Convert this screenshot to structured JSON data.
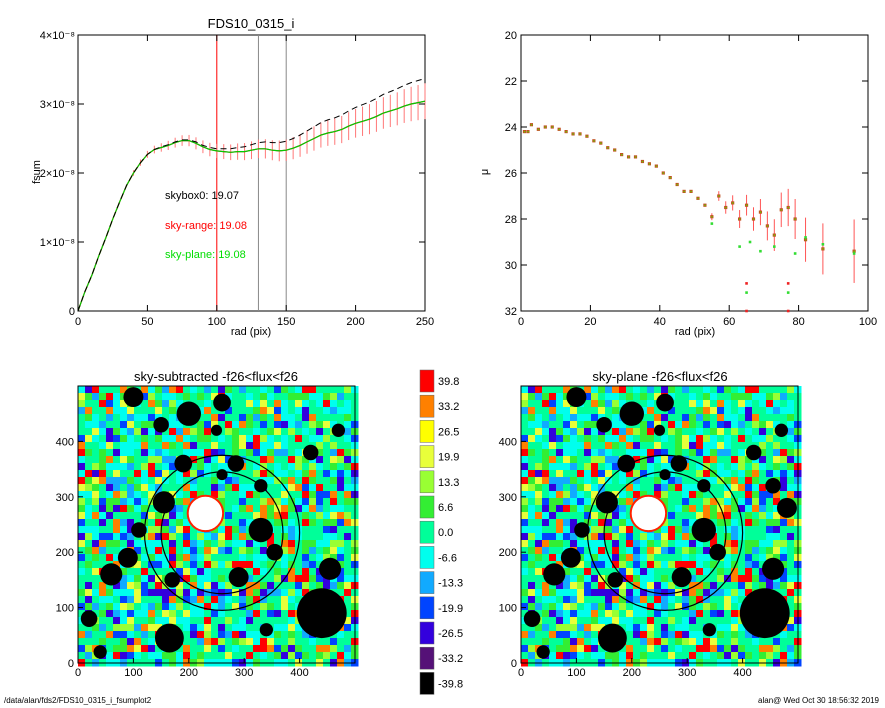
{
  "footer": {
    "path": "/data/alan/fds2/FDS10_0315_i_fsumplot2",
    "stamp": "alan@  Wed Oct 30 18:56:32 2019"
  },
  "chart_data": [
    {
      "type": "line",
      "title": "FDS10_0315_i",
      "xlabel": "rad (pix)",
      "ylabel": "fsum",
      "xlim": [
        0,
        250
      ],
      "ylim": [
        0,
        4e-08
      ],
      "xticks": [
        "0",
        "50",
        "100",
        "150",
        "200",
        "250"
      ],
      "yticks": [
        "0",
        "1×10⁻⁸",
        "2×10⁻⁸",
        "3×10⁻⁸",
        "4×10⁻⁸"
      ],
      "vlines": [
        {
          "x": 100,
          "color": "#ff0000"
        },
        {
          "x": 130,
          "color": "#888888"
        },
        {
          "x": 150,
          "color": "#888888"
        }
      ],
      "annotations": [
        {
          "text": "skybox0: 19.07",
          "color": "#000000"
        },
        {
          "text": "sky-range: 19.08",
          "color": "#ff0000"
        },
        {
          "text": "sky-plane: 19.08",
          "color": "#00dd00"
        }
      ],
      "x": [
        0,
        5,
        10,
        15,
        20,
        25,
        30,
        35,
        40,
        45,
        50,
        55,
        60,
        65,
        70,
        75,
        80,
        85,
        90,
        95,
        100,
        105,
        110,
        115,
        120,
        125,
        130,
        135,
        140,
        145,
        150,
        155,
        160,
        165,
        170,
        175,
        180,
        185,
        190,
        195,
        200,
        205,
        210,
        215,
        220,
        225,
        230,
        235,
        240,
        245,
        250
      ],
      "series": [
        {
          "color": "#ff0000",
          "y": [
            0,
            0.28,
            0.52,
            0.8,
            1.06,
            1.33,
            1.58,
            1.82,
            2.0,
            2.15,
            2.27,
            2.34,
            2.37,
            2.4,
            2.44,
            2.47,
            2.47,
            2.43,
            2.38,
            2.34,
            2.32,
            2.31,
            2.3,
            2.31,
            2.31,
            2.33,
            2.35,
            2.35,
            2.33,
            2.32,
            2.33,
            2.36,
            2.4,
            2.45,
            2.5,
            2.55,
            2.58,
            2.6,
            2.63,
            2.68,
            2.72,
            2.75,
            2.78,
            2.82,
            2.87,
            2.9,
            2.93,
            2.97,
            3.0,
            3.02,
            3.04
          ]
        },
        {
          "color": "#00cc00",
          "y": [
            0,
            0.28,
            0.52,
            0.8,
            1.06,
            1.33,
            1.58,
            1.82,
            2.0,
            2.15,
            2.27,
            2.34,
            2.37,
            2.4,
            2.44,
            2.47,
            2.47,
            2.43,
            2.38,
            2.34,
            2.32,
            2.31,
            2.3,
            2.31,
            2.31,
            2.33,
            2.35,
            2.35,
            2.33,
            2.32,
            2.33,
            2.36,
            2.4,
            2.45,
            2.5,
            2.55,
            2.58,
            2.6,
            2.63,
            2.68,
            2.72,
            2.75,
            2.78,
            2.82,
            2.87,
            2.9,
            2.93,
            2.97,
            3.0,
            3.02,
            3.04
          ]
        },
        {
          "color": "#000000",
          "dash": true,
          "y": [
            0,
            0.28,
            0.52,
            0.8,
            1.06,
            1.33,
            1.58,
            1.82,
            2.0,
            2.15,
            2.27,
            2.34,
            2.38,
            2.41,
            2.45,
            2.48,
            2.48,
            2.45,
            2.4,
            2.37,
            2.35,
            2.35,
            2.35,
            2.37,
            2.38,
            2.41,
            2.44,
            2.45,
            2.44,
            2.44,
            2.46,
            2.5,
            2.55,
            2.61,
            2.67,
            2.73,
            2.77,
            2.8,
            2.84,
            2.9,
            2.95,
            2.99,
            3.03,
            3.08,
            3.14,
            3.18,
            3.22,
            3.27,
            3.31,
            3.34,
            3.37
          ]
        }
      ]
    },
    {
      "type": "scatter",
      "ylabel": "μ",
      "xlabel": "rad (pix)",
      "xlim": [
        0,
        100
      ],
      "ylim": [
        32,
        20
      ],
      "xticks": [
        "0",
        "20",
        "40",
        "60",
        "80",
        "100"
      ],
      "yticks": [
        "20",
        "22",
        "24",
        "26",
        "28",
        "30",
        "32"
      ],
      "points": [
        [
          1,
          24.2
        ],
        [
          2,
          24.2
        ],
        [
          3,
          23.9
        ],
        [
          5,
          24.1
        ],
        [
          7,
          24.0
        ],
        [
          9,
          24.0
        ],
        [
          11,
          24.1
        ],
        [
          13,
          24.2
        ],
        [
          15,
          24.3
        ],
        [
          17,
          24.3
        ],
        [
          19,
          24.4
        ],
        [
          21,
          24.6
        ],
        [
          23,
          24.7
        ],
        [
          25,
          24.9
        ],
        [
          27,
          25.0
        ],
        [
          29,
          25.2
        ],
        [
          31,
          25.3
        ],
        [
          33,
          25.3
        ],
        [
          35,
          25.5
        ],
        [
          37,
          25.6
        ],
        [
          39,
          25.7
        ],
        [
          41,
          26.0
        ],
        [
          43,
          26.2
        ],
        [
          45,
          26.5
        ],
        [
          47,
          26.8
        ],
        [
          49,
          26.8
        ],
        [
          51,
          27.1
        ],
        [
          53,
          27.4
        ],
        [
          55,
          27.9
        ],
        [
          57,
          27.0
        ],
        [
          59,
          27.5
        ],
        [
          61,
          27.3
        ],
        [
          63,
          28.0
        ],
        [
          65,
          27.4
        ],
        [
          67,
          28.0
        ],
        [
          69,
          27.7
        ],
        [
          71,
          28.3
        ],
        [
          73,
          28.7
        ],
        [
          75,
          27.6
        ],
        [
          77,
          27.5
        ],
        [
          79,
          28.0
        ],
        [
          82,
          28.9
        ],
        [
          87,
          29.3
        ],
        [
          96,
          29.4
        ]
      ],
      "green_points": [
        [
          55,
          28.2
        ],
        [
          63,
          29.2
        ],
        [
          66,
          29.0
        ],
        [
          69,
          29.4
        ],
        [
          73,
          29.2
        ],
        [
          79,
          29.5
        ],
        [
          82,
          28.8
        ],
        [
          87,
          29.1
        ],
        [
          96,
          29.5
        ],
        [
          65,
          31.2
        ],
        [
          77,
          31.2
        ]
      ],
      "outliers": [
        [
          65,
          30.8
        ],
        [
          77,
          30.8
        ],
        [
          65,
          32.0
        ],
        [
          77,
          32.0
        ]
      ]
    },
    {
      "type": "heatmap",
      "title": "sky-subtracted -f26<flux<f26",
      "xlim": [
        0,
        500
      ],
      "ylim": [
        0,
        500
      ],
      "xticks": [
        "0",
        "100",
        "200",
        "300",
        "400"
      ],
      "yticks": [
        "0",
        "100",
        "200",
        "300",
        "400"
      ]
    },
    {
      "type": "heatmap",
      "title": "sky-plane -f26<flux<f26",
      "xlim": [
        0,
        500
      ],
      "ylim": [
        0,
        500
      ],
      "xticks": [
        "0",
        "100",
        "200",
        "300",
        "400"
      ],
      "yticks": [
        "0",
        "100",
        "200",
        "300",
        "400"
      ]
    }
  ],
  "colorbar": {
    "labels": [
      "39.8",
      "33.2",
      "26.5",
      "19.9",
      "13.3",
      "6.6",
      "0.0",
      "-6.6",
      "-13.3",
      "-19.9",
      "-26.5",
      "-33.2",
      "-39.8"
    ],
    "colors": [
      "#ff0000",
      "#ff8000",
      "#ffff00",
      "#e8ff3a",
      "#99ff33",
      "#33ee33",
      "#00ff99",
      "#00ffee",
      "#11aaff",
      "#0044ff",
      "#3300dd",
      "#551177",
      "#000000"
    ]
  }
}
